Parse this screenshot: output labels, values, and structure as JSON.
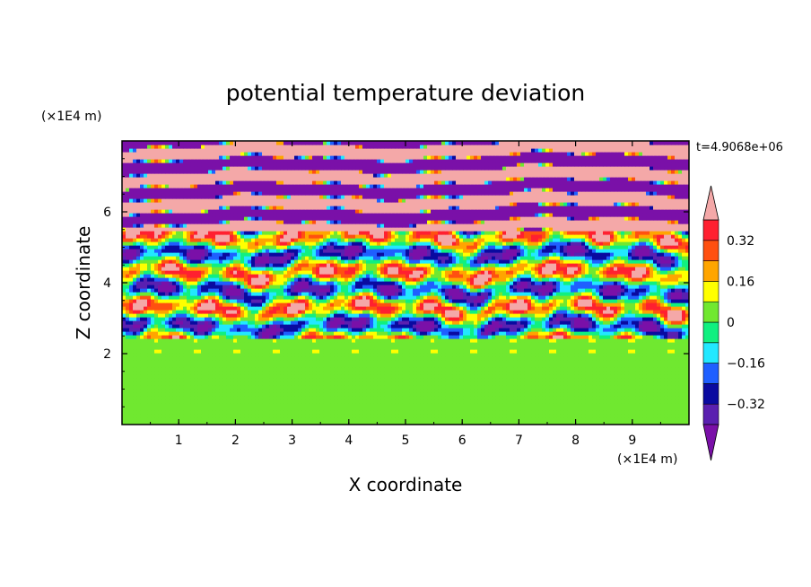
{
  "chart_data": {
    "type": "heatmap",
    "title": "potential temperature deviation",
    "xlabel": "X coordinate",
    "ylabel": "Z coordinate",
    "x_unit": "(×1E4 m)",
    "y_unit": "(×1E4 m)",
    "time_label": "t=4.9068e+06",
    "xlim": [
      0,
      10
    ],
    "ylim": [
      0,
      8
    ],
    "x_ticks": [
      "1",
      "2",
      "3",
      "4",
      "5",
      "6",
      "7",
      "8",
      "9"
    ],
    "y_ticks": [
      "2",
      "4",
      "6"
    ],
    "grid": false,
    "legend": "colorbar, right",
    "colorbar": {
      "labels": [
        "0.32",
        "0.16",
        "0",
        "-0.16",
        "-0.32"
      ],
      "levels_low_to_high": [
        -0.4,
        -0.32,
        -0.24,
        -0.16,
        -0.08,
        0,
        0.08,
        0.16,
        0.24,
        0.32,
        0.4
      ],
      "colors_low_to_high": [
        "#7a10a8",
        "#5a20b0",
        "#0a0aa0",
        "#1f5fff",
        "#22e8ff",
        "#10f080",
        "#70e830",
        "#ffff00",
        "#ffa500",
        "#ff5010",
        "#ff2030",
        "#f4a8a8"
      ],
      "extend": "both"
    },
    "field_description_regions": [
      {
        "z_range": [
          0,
          2.0
        ],
        "pattern": "smooth convective cells",
        "values": [
          0,
          0.04
        ]
      },
      {
        "z_range": [
          2.0,
          2.4
        ],
        "pattern": "flat layer",
        "values": [
          0
        ]
      },
      {
        "z_range": [
          2.4,
          5.5
        ],
        "pattern": "turbulent wavy layers",
        "values": [
          -0.4,
          0.4
        ]
      },
      {
        "z_range": [
          5.5,
          8.0
        ],
        "pattern": "alternating stratified bands",
        "values": [
          -0.4,
          0.4
        ]
      }
    ]
  }
}
